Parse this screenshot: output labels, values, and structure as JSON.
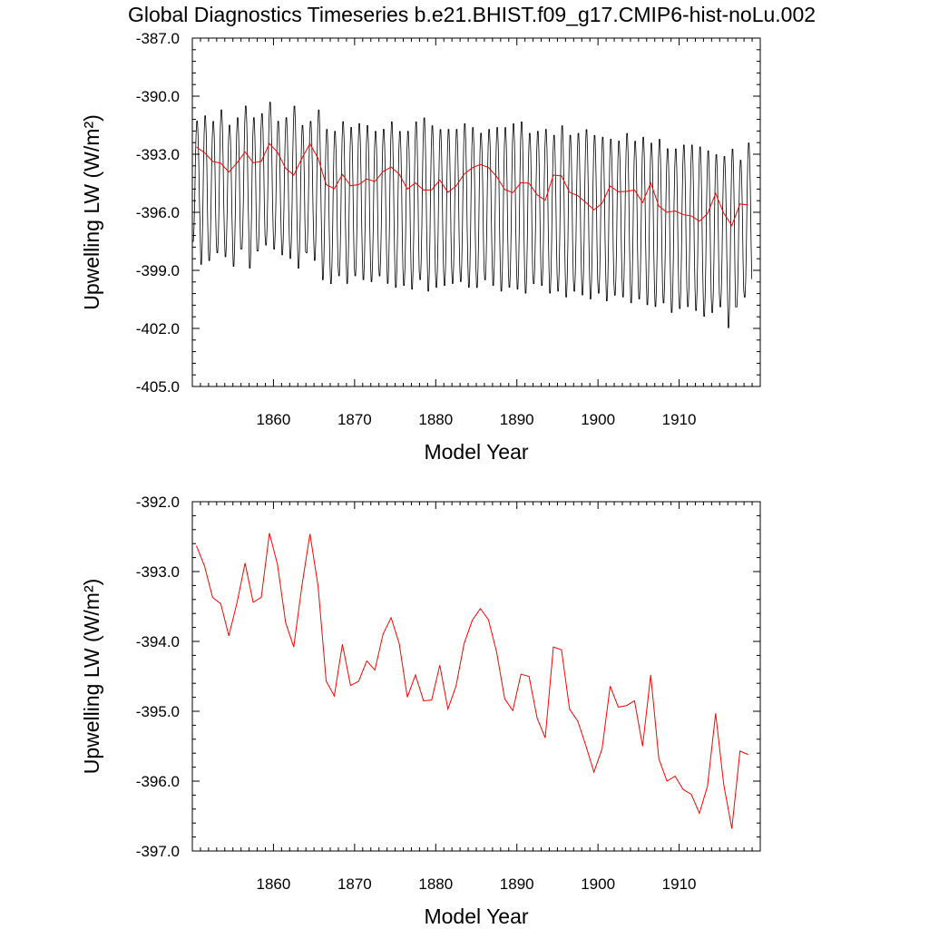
{
  "title": "Global Diagnostics Timeseries b.e21.BHIST.f09_g17.CMIP6-hist-noLu.002",
  "colors": {
    "axis": "#000000",
    "monthly": "#000000",
    "annual": "#ff0000"
  },
  "chart_data": [
    {
      "type": "line",
      "xlabel": "Model Year",
      "ylabel": "Upwelling LW (W/m²)",
      "xlim": [
        1850,
        1920
      ],
      "ylim": [
        -405.0,
        -387.0
      ],
      "xticks": [
        "1860",
        "1870",
        "1880",
        "1890",
        "1900",
        "1910"
      ],
      "yticks": [
        "-405.0",
        "-402.0",
        "-399.0",
        "-396.0",
        "-393.0",
        "-390.0",
        "-387.0"
      ],
      "series": [
        {
          "kind": "monthly",
          "seasonal_max": [
            -391.2,
            -390.9,
            -391.2,
            -390.6,
            -391.4,
            -391.0,
            -390.4,
            -391.0,
            -390.8,
            -390.2,
            -391.2,
            -391.0,
            -390.4,
            -391.4,
            -391.2,
            -390.6,
            -391.6,
            -391.7,
            -391.2,
            -391.5,
            -391.3,
            -391.4,
            -391.7,
            -391.6,
            -391.2,
            -391.7,
            -391.7,
            -391.2,
            -391.0,
            -391.4,
            -391.6,
            -391.6,
            -391.6,
            -391.3,
            -391.5,
            -391.8,
            -391.6,
            -391.5,
            -391.5,
            -391.3,
            -391.2,
            -391.8,
            -391.7,
            -391.6,
            -391.9,
            -391.4,
            -391.9,
            -391.8,
            -391.6,
            -391.9,
            -392.0,
            -392.1,
            -392.2,
            -391.8,
            -392.2,
            -392.0,
            -392.3,
            -392.1,
            -392.6,
            -392.6,
            -392.4,
            -392.4,
            -392.5,
            -392.7,
            -392.9,
            -393.0,
            -392.6,
            -393.2,
            -392.3
          ],
          "seasonal_min": [
            -397.6,
            -398.8,
            -398.6,
            -398.2,
            -398.4,
            -398.9,
            -398.0,
            -399.0,
            -398.1,
            -397.8,
            -398.0,
            -398.3,
            -398.5,
            -399.0,
            -398.2,
            -398.6,
            -399.6,
            -399.8,
            -399.4,
            -399.8,
            -399.4,
            -399.6,
            -399.7,
            -399.4,
            -399.8,
            -400.0,
            -399.9,
            -400.1,
            -399.6,
            -400.2,
            -400.0,
            -399.9,
            -399.8,
            -399.7,
            -400.0,
            -400.0,
            -399.6,
            -399.9,
            -400.2,
            -400.0,
            -400.1,
            -400.3,
            -399.8,
            -399.9,
            -400.3,
            -400.2,
            -400.5,
            -400.2,
            -400.4,
            -400.6,
            -400.3,
            -400.7,
            -400.4,
            -400.5,
            -400.8,
            -400.6,
            -400.9,
            -401.0,
            -400.8,
            -401.3,
            -401.1,
            -401.0,
            -401.2,
            -401.5,
            -401.3,
            -401.0,
            -402.1,
            -401.0,
            -400.5
          ]
        },
        {
          "kind": "annual",
          "x": [
            1850.5,
            1851.5,
            1852.5,
            1853.5,
            1854.5,
            1855.5,
            1856.5,
            1857.5,
            1858.5,
            1859.5,
            1860.5,
            1861.5,
            1862.5,
            1863.5,
            1864.5,
            1865.5,
            1866.5,
            1867.5,
            1868.5,
            1869.5,
            1870.5,
            1871.5,
            1872.5,
            1873.5,
            1874.5,
            1875.5,
            1876.5,
            1877.5,
            1878.5,
            1879.5,
            1880.5,
            1881.5,
            1882.5,
            1883.5,
            1884.5,
            1885.5,
            1886.5,
            1887.5,
            1888.5,
            1889.5,
            1890.5,
            1891.5,
            1892.5,
            1893.5,
            1894.5,
            1895.5,
            1896.5,
            1897.5,
            1898.5,
            1899.5,
            1900.5,
            1901.5,
            1902.5,
            1903.5,
            1904.5,
            1905.5,
            1906.5,
            1907.5,
            1908.5,
            1909.5,
            1910.5,
            1911.5,
            1912.5,
            1913.5,
            1914.5,
            1915.5,
            1916.5,
            1917.5,
            1918.5
          ],
          "values": [
            -392.63,
            -392.92,
            -393.37,
            -393.46,
            -393.92,
            -393.45,
            -392.88,
            -393.44,
            -393.37,
            -392.45,
            -392.9,
            -393.73,
            -394.08,
            -393.21,
            -392.46,
            -393.21,
            -394.57,
            -394.78,
            -394.04,
            -394.63,
            -394.57,
            -394.28,
            -394.41,
            -393.9,
            -393.66,
            -394.03,
            -394.8,
            -394.48,
            -394.85,
            -394.84,
            -394.34,
            -394.97,
            -394.64,
            -394.03,
            -393.7,
            -393.53,
            -393.69,
            -394.15,
            -394.82,
            -394.99,
            -394.47,
            -394.5,
            -395.1,
            -395.38,
            -394.08,
            -394.12,
            -394.97,
            -395.14,
            -395.49,
            -395.87,
            -395.54,
            -394.64,
            -394.94,
            -394.92,
            -394.85,
            -395.5,
            -394.48,
            -395.68,
            -396.0,
            -395.93,
            -396.12,
            -396.19,
            -396.46,
            -396.07,
            -395.03,
            -396.05,
            -396.68,
            -395.57,
            -395.62
          ]
        }
      ]
    },
    {
      "type": "line",
      "xlabel": "Model Year",
      "ylabel": "Upwelling LW (W/m²)",
      "xlim": [
        1850,
        1920
      ],
      "ylim": [
        -397.0,
        -392.0
      ],
      "xticks": [
        "1860",
        "1870",
        "1880",
        "1890",
        "1900",
        "1910"
      ],
      "yticks": [
        "-397.0",
        "-396.0",
        "-395.0",
        "-394.0",
        "-393.0",
        "-392.0"
      ],
      "series": [
        {
          "kind": "annual",
          "source": "same annual series as top panel"
        }
      ]
    }
  ]
}
